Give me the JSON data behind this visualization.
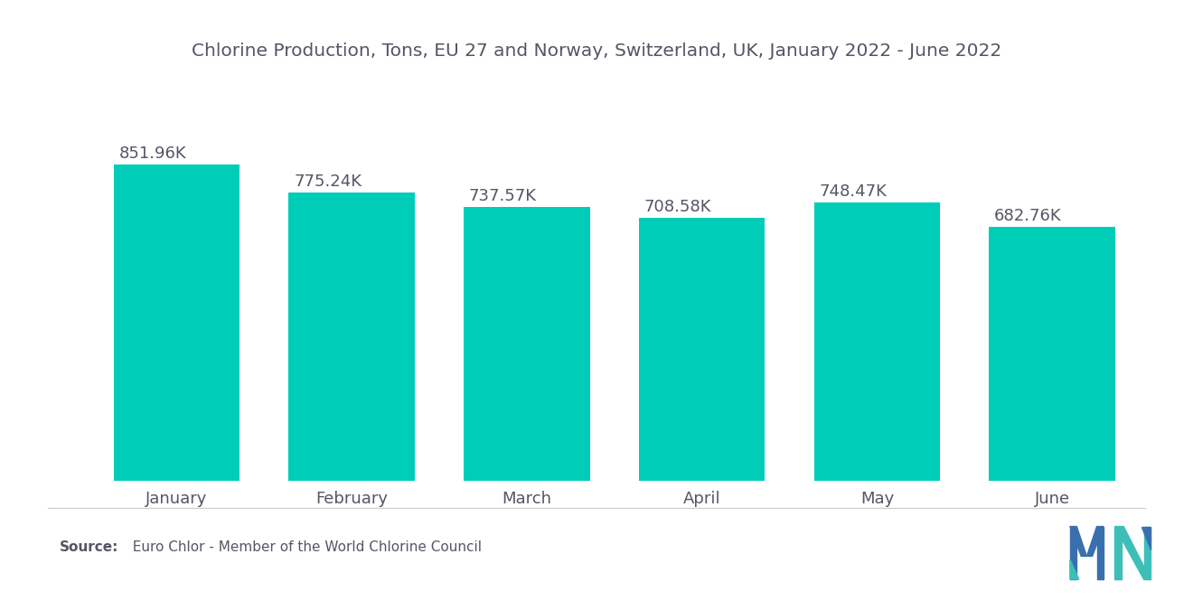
{
  "title": "Chlorine Production, Tons, EU 27 and Norway, Switzerland, UK, January 2022 - June 2022",
  "categories": [
    "January",
    "February",
    "March",
    "April",
    "May",
    "June"
  ],
  "values": [
    851960,
    775240,
    737570,
    708580,
    748470,
    682760
  ],
  "labels": [
    "851.96K",
    "775.24K",
    "737.57K",
    "708.58K",
    "748.47K",
    "682.76K"
  ],
  "bar_color": "#00CDB8",
  "background_color": "#ffffff",
  "title_color": "#555566",
  "label_color": "#555566",
  "tick_color": "#555566",
  "source_bold": "Source:",
  "source_rest": "  Euro Chlor - Member of the World Chlorine Council",
  "divider_color": "#cccccc",
  "ylim_min": 0,
  "ylim_max": 970000,
  "title_fontsize": 14.5,
  "label_fontsize": 13,
  "tick_fontsize": 13,
  "source_fontsize": 11,
  "logo_blue": "#3a6fad",
  "logo_teal": "#3dbfb8"
}
